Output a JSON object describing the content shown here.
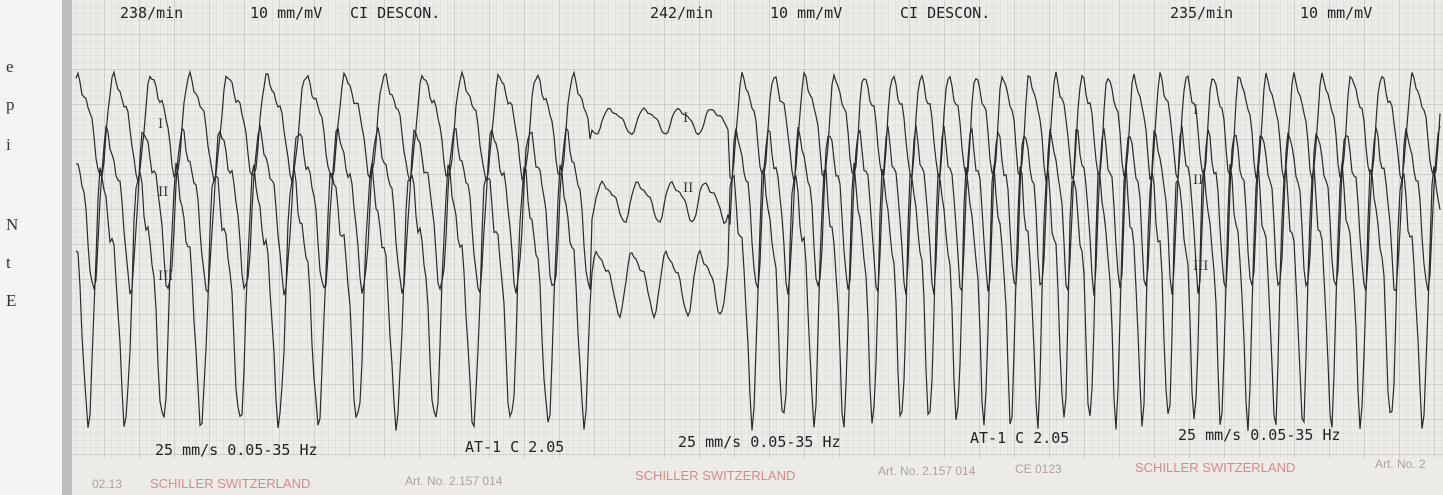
{
  "margin_letters": [
    "e",
    "p",
    "i",
    "N",
    "t",
    "E"
  ],
  "header": [
    {
      "rate": "238/min",
      "gain": "10 mm/mV",
      "note": "CI DESCON."
    },
    {
      "rate": "242/min",
      "gain": "10 mm/mV",
      "note": "CI DESCON."
    },
    {
      "rate": "235/min",
      "gain": "10 mm/mV"
    }
  ],
  "leads": [
    "I",
    "II",
    "III"
  ],
  "speed": "25 mm/s 0.05-35 Hz",
  "filter": "AT-1 C 2.05",
  "footer": {
    "code": "02.13",
    "maker": "SCHILLER SWITZERLAND",
    "article": "Art. No. 2.157 014",
    "ce": "CE 0123",
    "article_short": "Art. No. 2"
  }
}
